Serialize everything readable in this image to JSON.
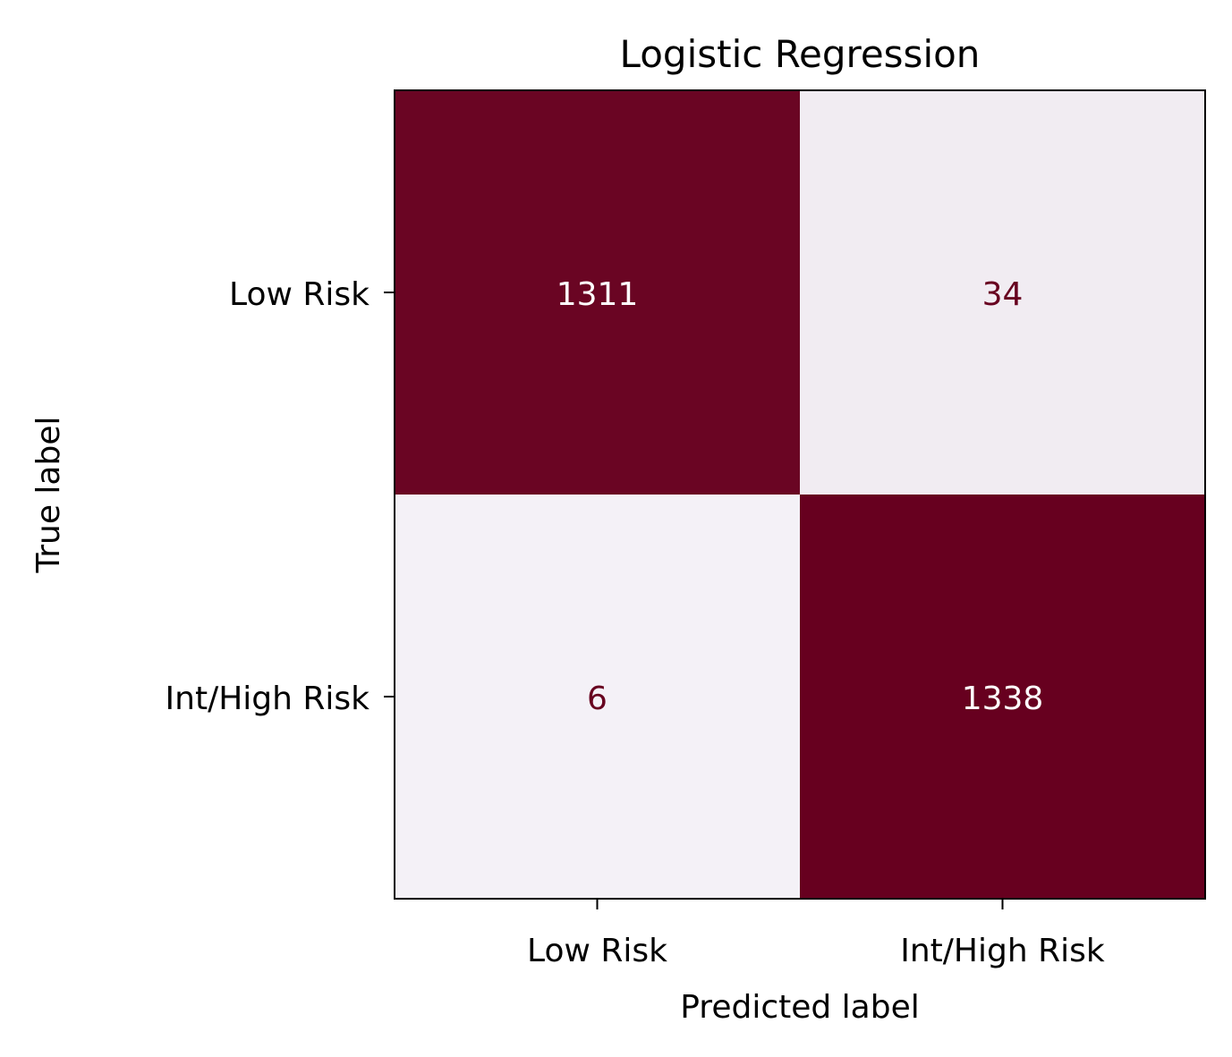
{
  "chart_data": {
    "type": "heatmap",
    "title": "Logistic Regression",
    "xlabel": "Predicted label",
    "ylabel": "True label",
    "x_categories": [
      "Low Risk",
      "Int/High Risk"
    ],
    "y_categories": [
      "Low Risk",
      "Int/High Risk"
    ],
    "values": [
      [
        1311,
        34
      ],
      [
        6,
        1338
      ]
    ],
    "colorscale": {
      "low": "#f4f1f7",
      "high": "#67001f",
      "text_on_dark": "#ffffff",
      "text_on_light": "#67001f"
    },
    "grid": false,
    "legend": "none"
  }
}
